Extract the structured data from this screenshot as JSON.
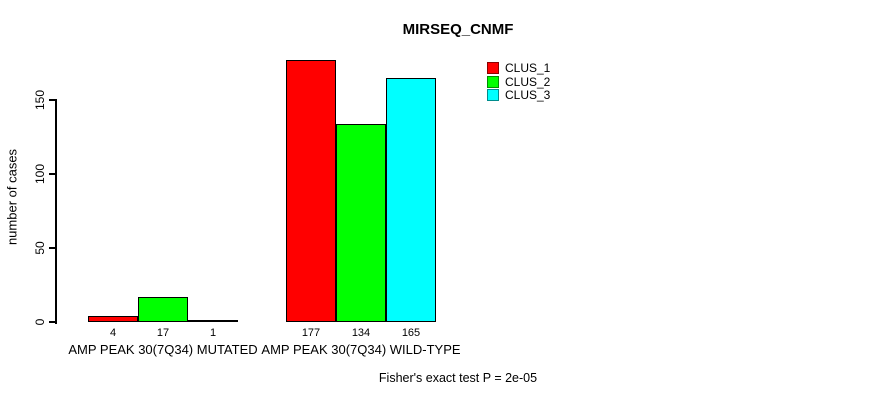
{
  "chart_data": {
    "type": "bar",
    "title": "MIRSEQ_CNMF",
    "xlabel": "",
    "ylabel": "number of cases",
    "ylim": [
      0,
      177
    ],
    "yticks": [
      0,
      50,
      100,
      150
    ],
    "grid": false,
    "categories": [
      "AMP PEAK 30(7Q34) MUTATED",
      "AMP PEAK 30(7Q34) WILD-TYPE"
    ],
    "series": [
      {
        "name": "CLUS_1",
        "color": "#ff0000",
        "values": [
          4,
          177
        ]
      },
      {
        "name": "CLUS_2",
        "color": "#00ff00",
        "values": [
          17,
          134
        ]
      },
      {
        "name": "CLUS_3",
        "color": "#00ffff",
        "values": [
          1,
          165
        ]
      }
    ],
    "bar_value_labels_shown": true,
    "legend": {
      "position": "top-right",
      "entries": [
        "CLUS_1",
        "CLUS_2",
        "CLUS_3"
      ]
    },
    "annotation": "Fisher's exact test P = 2e-05"
  }
}
